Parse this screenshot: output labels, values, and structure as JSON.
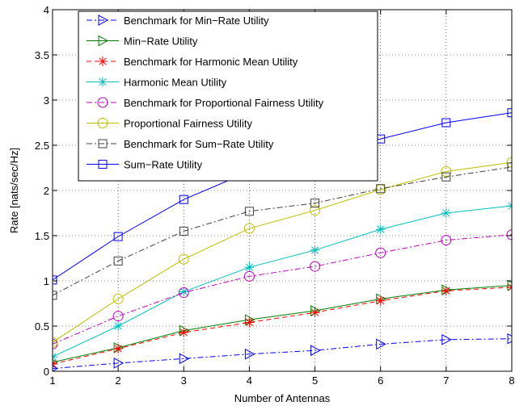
{
  "chart_data": {
    "type": "line",
    "title": "",
    "xlabel": "Number of Antennas",
    "ylabel": "Rate [nats/sec/Hz]",
    "xlim": [
      1,
      8
    ],
    "ylim": [
      0,
      4
    ],
    "xticks": [
      1,
      2,
      3,
      4,
      5,
      6,
      7,
      8
    ],
    "yticks": [
      0,
      0.5,
      1,
      1.5,
      2,
      2.5,
      3,
      3.5,
      4
    ],
    "ytick_labels": [
      "0",
      "0.5",
      "1",
      "1.5",
      "2",
      "2.5",
      "3",
      "3.5",
      "4"
    ],
    "grid": true,
    "legend_position": "top-left",
    "x": [
      1,
      2,
      3,
      4,
      5,
      6,
      7,
      8
    ],
    "series": [
      {
        "name": "Benchmark for Min−Rate Utility",
        "color": "#0000ff",
        "dash": "dashdot",
        "marker": "triangle-right",
        "values": [
          0.03,
          0.09,
          0.14,
          0.19,
          0.23,
          0.3,
          0.35,
          0.36
        ]
      },
      {
        "name": "Min−Rate Utility",
        "color": "#008000",
        "dash": "solid",
        "marker": "triangle-right",
        "values": [
          0.1,
          0.26,
          0.45,
          0.57,
          0.67,
          0.8,
          0.9,
          0.95
        ]
      },
      {
        "name": "Benchmark for Harmonic Mean Utility",
        "color": "#ff0000",
        "dash": "dashed",
        "marker": "asterisk",
        "values": [
          0.08,
          0.25,
          0.43,
          0.54,
          0.65,
          0.78,
          0.89,
          0.93
        ]
      },
      {
        "name": "Harmonic Mean Utility",
        "color": "#00bfbf",
        "dash": "solid",
        "marker": "asterisk",
        "values": [
          0.16,
          0.5,
          0.88,
          1.15,
          1.34,
          1.57,
          1.75,
          1.83
        ]
      },
      {
        "name": "Benchmark for Proportional Fairness Utility",
        "color": "#bf00bf",
        "dash": "dashdot",
        "marker": "circle",
        "values": [
          0.3,
          0.61,
          0.87,
          1.05,
          1.16,
          1.31,
          1.45,
          1.51
        ]
      },
      {
        "name": "Proportional Fairness Utility",
        "color": "#bfbf00",
        "dash": "solid",
        "marker": "circle",
        "values": [
          0.32,
          0.8,
          1.24,
          1.58,
          1.78,
          2.01,
          2.21,
          2.31
        ]
      },
      {
        "name": "Benchmark for Sum−Rate Utility",
        "color": "#404040",
        "dash": "dashdot",
        "marker": "square",
        "values": [
          0.84,
          1.22,
          1.55,
          1.77,
          1.86,
          2.02,
          2.15,
          2.26
        ]
      },
      {
        "name": "Sum−Rate Utility",
        "color": "#0000ff",
        "dash": "solid",
        "marker": "square",
        "values": [
          1.01,
          1.49,
          1.9,
          2.21,
          2.42,
          2.57,
          2.75,
          2.86
        ]
      }
    ]
  }
}
